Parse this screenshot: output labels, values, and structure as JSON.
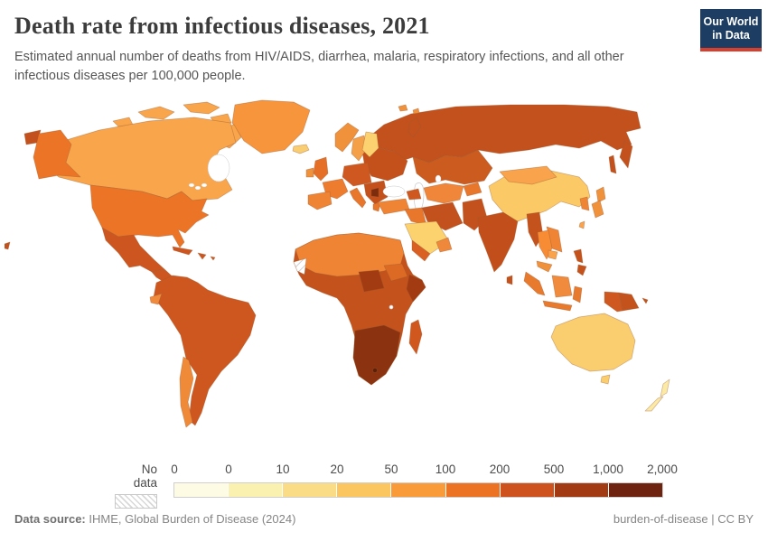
{
  "header": {
    "title": "Death rate from infectious diseases, 2021",
    "subtitle": "Estimated annual number of deaths from HIV/AIDS, diarrhea, malaria, respiratory infections, and all other infectious diseases per 100,000 people.",
    "logo": {
      "line1": "Our World",
      "line2": "in Data",
      "bg": "#1D3D63",
      "accent": "#D7402F"
    }
  },
  "legend": {
    "no_data_label": "No data",
    "no_data_pattern": "diagonal-hatch",
    "tick_labels": [
      "0",
      "0",
      "10",
      "20",
      "50",
      "100",
      "200",
      "500",
      "1,000",
      "2,000"
    ],
    "bin_colors": [
      "#FEFBE4",
      "#FAF0B0",
      "#F9DC85",
      "#FBC55F",
      "#F99B38",
      "#EC7324",
      "#CD521D",
      "#A23B13",
      "#6D2310"
    ]
  },
  "footer": {
    "source_label": "Data source:",
    "source_text": " IHME, Global Burden of Disease (2024)",
    "attribution": "burden-of-disease | CC BY"
  },
  "map": {
    "ocean": "#FFFFFF",
    "border_color": "#9C5B2E",
    "sea_border": "#c8c8c8",
    "regions": [
      {
        "id": "greenland",
        "fill": "#F6953C"
      },
      {
        "id": "iceland",
        "fill": "#F9CE72"
      },
      {
        "id": "canada",
        "fill": "#F8A54B"
      },
      {
        "id": "usa",
        "fill": "#EC7426"
      },
      {
        "id": "mexico",
        "fill": "#CD5520"
      },
      {
        "id": "central-america",
        "fill": "#CD5520"
      },
      {
        "id": "caribbean",
        "fill": "#CD5520"
      },
      {
        "id": "south-america",
        "fill": "#CE5720"
      },
      {
        "id": "ecuador",
        "fill": "#F08A3C"
      },
      {
        "id": "chile",
        "fill": "#EF8A38"
      },
      {
        "id": "norway",
        "fill": "#F0913C"
      },
      {
        "id": "sweden",
        "fill": "#F4A049"
      },
      {
        "id": "finland",
        "fill": "#FBD26F"
      },
      {
        "id": "uk",
        "fill": "#E66F27"
      },
      {
        "id": "ireland",
        "fill": "#F0913C"
      },
      {
        "id": "france",
        "fill": "#ED7C2E"
      },
      {
        "id": "iberia",
        "fill": "#EF8434"
      },
      {
        "id": "central-europe",
        "fill": "#CE5820"
      },
      {
        "id": "italy",
        "fill": "#E8762B"
      },
      {
        "id": "greece",
        "fill": "#E8762B"
      },
      {
        "id": "balkans",
        "fill": "#C4511C"
      },
      {
        "id": "balkans-dark",
        "fill": "#7E2C0E"
      },
      {
        "id": "east-europe",
        "fill": "#C4511C"
      },
      {
        "id": "russia",
        "fill": "#C2511D"
      },
      {
        "id": "kazakhstan",
        "fill": "#CC5B20"
      },
      {
        "id": "central-asia",
        "fill": "#F0863A"
      },
      {
        "id": "tajik-kyrgyz",
        "fill": "#E8762B"
      },
      {
        "id": "turkey",
        "fill": "#EF8434"
      },
      {
        "id": "caucasus",
        "fill": "#CE5820"
      },
      {
        "id": "iran",
        "fill": "#C2511D"
      },
      {
        "id": "iraq-syria",
        "fill": "#E8762B"
      },
      {
        "id": "saudi",
        "fill": "#FBD26E"
      },
      {
        "id": "yemen",
        "fill": "#D96022"
      },
      {
        "id": "oman",
        "fill": "#F0883B"
      },
      {
        "id": "afghanistan-pakistan",
        "fill": "#C2511D"
      },
      {
        "id": "india",
        "fill": "#C24F1B"
      },
      {
        "id": "sri-lanka",
        "fill": "#C4521C"
      },
      {
        "id": "china",
        "fill": "#FBC966"
      },
      {
        "id": "mongolia",
        "fill": "#F9A44C"
      },
      {
        "id": "korea",
        "fill": "#EF8434"
      },
      {
        "id": "japan",
        "fill": "#F0913C"
      },
      {
        "id": "taiwan",
        "fill": "#F9A44C"
      },
      {
        "id": "myanmar",
        "fill": "#C4521C"
      },
      {
        "id": "thailand",
        "fill": "#F78C35"
      },
      {
        "id": "laos-vietnam",
        "fill": "#EF8434"
      },
      {
        "id": "cambodia",
        "fill": "#F9A44C"
      },
      {
        "id": "malaysia",
        "fill": "#F0913C"
      },
      {
        "id": "indonesia",
        "fill": "#E87A2E"
      },
      {
        "id": "borneo",
        "fill": "#F08A3C"
      },
      {
        "id": "philippines",
        "fill": "#C4521C"
      },
      {
        "id": "west-new-guinea",
        "fill": "#CE5820"
      },
      {
        "id": "png",
        "fill": "#C4521C"
      },
      {
        "id": "australia",
        "fill": "#FACE6E"
      },
      {
        "id": "new-zealand",
        "fill": "#FBE9A6"
      },
      {
        "id": "africa-base",
        "fill": "#C4521C"
      },
      {
        "id": "north-africa",
        "fill": "#EF8434"
      },
      {
        "id": "western-sahara",
        "fill": "url(#hatch)"
      },
      {
        "id": "sudan",
        "fill": "#DC6A24"
      },
      {
        "id": "chad-car",
        "fill": "#A33B12"
      },
      {
        "id": "somalia",
        "fill": "#A33B12"
      },
      {
        "id": "southern-africa",
        "fill": "#8B3310"
      },
      {
        "id": "lesotho",
        "fill": "#5E1F09"
      },
      {
        "id": "madagascar",
        "fill": "#D0581F"
      }
    ]
  },
  "chart_data": {
    "type": "choropleth_map",
    "title": "Death rate from infectious diseases, 2021",
    "unit": "deaths per 100,000 people",
    "year": 2021,
    "legend_bins": [
      {
        "range": "0",
        "color": "#FEFBE4"
      },
      {
        "range": "0-10",
        "color": "#FAF0B0"
      },
      {
        "range": "10-20",
        "color": "#F9DC85"
      },
      {
        "range": "20-50",
        "color": "#FBC55F"
      },
      {
        "range": "50-100",
        "color": "#F99B38"
      },
      {
        "range": "100-200",
        "color": "#EC7324"
      },
      {
        "range": "200-500",
        "color": "#CD521D"
      },
      {
        "range": "500-1,000",
        "color": "#A23B13"
      },
      {
        "range": "1,000-2,000",
        "color": "#6D2310"
      }
    ],
    "no_data": [
      "Western Sahara"
    ],
    "regions": [
      {
        "name": "Canada",
        "bin": "50-100"
      },
      {
        "name": "United States",
        "bin": "100-200"
      },
      {
        "name": "Greenland",
        "bin": "50-100"
      },
      {
        "name": "Iceland",
        "bin": "20-50"
      },
      {
        "name": "Mexico",
        "bin": "200-500"
      },
      {
        "name": "Central America",
        "bin": "200-500"
      },
      {
        "name": "Caribbean",
        "bin": "200-500"
      },
      {
        "name": "South America (Brazil, Andes, Argentina)",
        "bin": "200-500"
      },
      {
        "name": "Ecuador",
        "bin": "100-200"
      },
      {
        "name": "Chile",
        "bin": "100-200"
      },
      {
        "name": "Norway",
        "bin": "100-200"
      },
      {
        "name": "Sweden",
        "bin": "50-100"
      },
      {
        "name": "Finland",
        "bin": "20-50"
      },
      {
        "name": "United Kingdom",
        "bin": "100-200"
      },
      {
        "name": "Ireland",
        "bin": "100-200"
      },
      {
        "name": "France",
        "bin": "100-200"
      },
      {
        "name": "Spain & Portugal",
        "bin": "100-200"
      },
      {
        "name": "Germany & Central Europe",
        "bin": "200-500"
      },
      {
        "name": "Italy",
        "bin": "100-200"
      },
      {
        "name": "Greece",
        "bin": "100-200"
      },
      {
        "name": "Balkans",
        "bin": "200-500"
      },
      {
        "name": "Serbia & North Macedonia",
        "bin": "500-1,000"
      },
      {
        "name": "Eastern Europe (Poland, Ukraine, Romania, Baltics)",
        "bin": "200-500"
      },
      {
        "name": "Russia",
        "bin": "200-500"
      },
      {
        "name": "Kazakhstan",
        "bin": "200-500"
      },
      {
        "name": "Turkmenistan & Uzbekistan",
        "bin": "100-200"
      },
      {
        "name": "Kyrgyzstan & Tajikistan",
        "bin": "100-200"
      },
      {
        "name": "Turkey",
        "bin": "100-200"
      },
      {
        "name": "Caucasus",
        "bin": "200-500"
      },
      {
        "name": "Iran",
        "bin": "200-500"
      },
      {
        "name": "Iraq & Syria",
        "bin": "100-200"
      },
      {
        "name": "Saudi Arabia",
        "bin": "20-50"
      },
      {
        "name": "Yemen",
        "bin": "200-500"
      },
      {
        "name": "Oman",
        "bin": "100-200"
      },
      {
        "name": "Afghanistan & Pakistan",
        "bin": "200-500"
      },
      {
        "name": "India",
        "bin": "200-500"
      },
      {
        "name": "Sri Lanka",
        "bin": "200-500"
      },
      {
        "name": "China",
        "bin": "20-50"
      },
      {
        "name": "Mongolia",
        "bin": "50-100"
      },
      {
        "name": "North & South Korea",
        "bin": "100-200"
      },
      {
        "name": "Japan",
        "bin": "100-200"
      },
      {
        "name": "Taiwan",
        "bin": "50-100"
      },
      {
        "name": "Myanmar",
        "bin": "200-500"
      },
      {
        "name": "Thailand",
        "bin": "100-200"
      },
      {
        "name": "Vietnam & Laos",
        "bin": "100-200"
      },
      {
        "name": "Cambodia",
        "bin": "50-100"
      },
      {
        "name": "Malaysia",
        "bin": "100-200"
      },
      {
        "name": "Indonesia",
        "bin": "100-200"
      },
      {
        "name": "Philippines",
        "bin": "200-500"
      },
      {
        "name": "Papua New Guinea",
        "bin": "200-500"
      },
      {
        "name": "Australia",
        "bin": "20-50"
      },
      {
        "name": "New Zealand",
        "bin": "10-20"
      },
      {
        "name": "North Africa (Morocco to Egypt)",
        "bin": "100-200"
      },
      {
        "name": "Western Sahara",
        "bin": "No data"
      },
      {
        "name": "Sahel & West Africa",
        "bin": "200-500"
      },
      {
        "name": "Sudan",
        "bin": "200-500"
      },
      {
        "name": "Chad & Central African Republic",
        "bin": "500-1,000"
      },
      {
        "name": "Somalia",
        "bin": "500-1,000"
      },
      {
        "name": "Central & East Africa",
        "bin": "200-500"
      },
      {
        "name": "Southern Africa",
        "bin": "500-1,000"
      },
      {
        "name": "Lesotho",
        "bin": "1,000-2,000"
      },
      {
        "name": "Madagascar",
        "bin": "200-500"
      }
    ]
  }
}
